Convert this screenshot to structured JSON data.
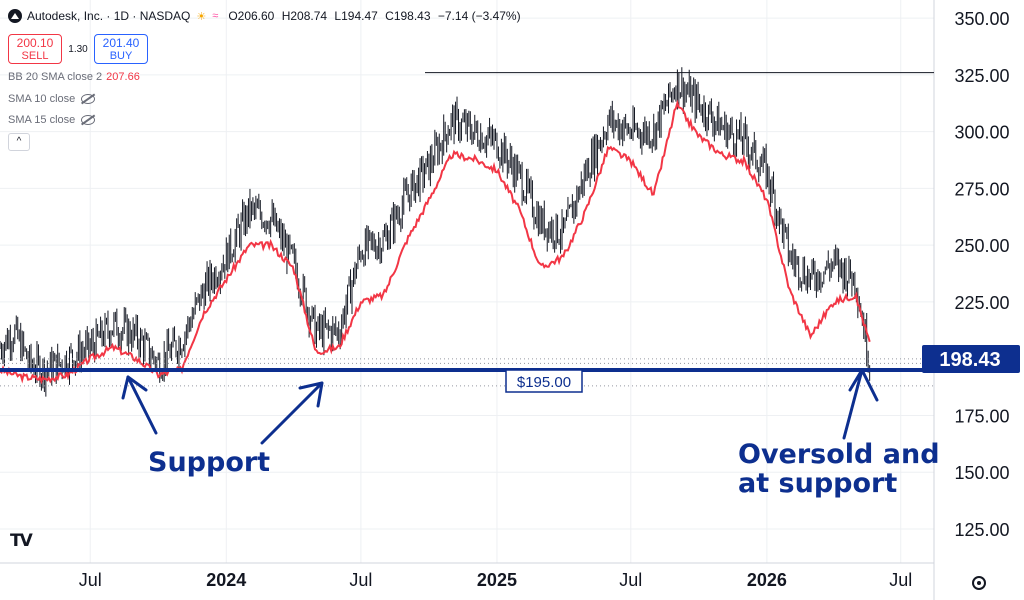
{
  "header": {
    "title": "Autodesk, Inc. · 1D · NASDAQ",
    "open": "O206.60",
    "high": "H208.74",
    "low": "L194.47",
    "close": "C198.43",
    "change": "−7.14 (−3.47%)"
  },
  "trade": {
    "sell_price": "200.10",
    "sell_label": "SELL",
    "spread": "1.30",
    "buy_price": "201.40",
    "buy_label": "BUY"
  },
  "indicators": {
    "bb_label": "BB 20 SMA close 2",
    "bb_value": "207.66",
    "sma10_label": "SMA 10 close",
    "sma15_label": "SMA 15 close",
    "collapse_glyph": "^"
  },
  "annotations": {
    "support_label": "Support",
    "oversold_line1": "Oversold and",
    "oversold_line2": "at support",
    "level_label": "$195.00",
    "last_price_label": "198.43"
  },
  "branding": {
    "logo_text": "TV"
  },
  "colors": {
    "price_bars": "#131722",
    "sma_line": "#f23645",
    "annotation_blue": "#0d2f8f",
    "grid": "#eef0f3"
  },
  "chart_data": {
    "type": "line",
    "symbol": "Autodesk, Inc.",
    "interval": "1D",
    "exchange": "NASDAQ",
    "y_axis_ticks": [
      "350.00",
      "325.00",
      "300.00",
      "275.00",
      "250.00",
      "225.00",
      "175.00",
      "150.00",
      "125.00"
    ],
    "y_axis_values": [
      350,
      325,
      300,
      275,
      250,
      225,
      175,
      150,
      125
    ],
    "x_axis_ticks": [
      "Jul",
      "2024",
      "Jul",
      "2025",
      "Jul",
      "2026",
      "Jul"
    ],
    "x_axis_dates": [
      "2023-07-01",
      "2024-01-01",
      "2024-07-01",
      "2025-01-01",
      "2025-07-01",
      "2026-01-01",
      "2026-07-01"
    ],
    "x_range": [
      "2023-03-01",
      "2026-08-15"
    ],
    "ylim": [
      110,
      358
    ],
    "last_price": 198.43,
    "support_level": 195.0,
    "resistance_level": 326.0,
    "series": [
      {
        "name": "Autodesk, Inc.",
        "kind": "price",
        "points": [
          [
            "2023-03-01",
            205
          ],
          [
            "2023-03-20",
            212
          ],
          [
            "2023-04-10",
            198
          ],
          [
            "2023-05-01",
            195
          ],
          [
            "2023-06-01",
            200
          ],
          [
            "2023-07-01",
            205
          ],
          [
            "2023-08-01",
            215
          ],
          [
            "2023-09-01",
            210
          ],
          [
            "2023-10-01",
            198
          ],
          [
            "2023-11-01",
            208
          ],
          [
            "2023-12-01",
            230
          ],
          [
            "2024-01-01",
            245
          ],
          [
            "2024-02-01",
            265
          ],
          [
            "2024-03-01",
            262
          ],
          [
            "2024-04-01",
            242
          ],
          [
            "2024-05-01",
            212
          ],
          [
            "2024-06-01",
            212
          ],
          [
            "2024-07-01",
            248
          ],
          [
            "2024-08-01",
            252
          ],
          [
            "2024-09-01",
            272
          ],
          [
            "2024-10-01",
            285
          ],
          [
            "2024-11-01",
            305
          ],
          [
            "2024-12-01",
            300
          ],
          [
            "2025-01-01",
            295
          ],
          [
            "2025-02-01",
            280
          ],
          [
            "2025-03-01",
            260
          ],
          [
            "2025-04-01",
            255
          ],
          [
            "2025-05-01",
            282
          ],
          [
            "2025-06-01",
            305
          ],
          [
            "2025-07-01",
            300
          ],
          [
            "2025-08-01",
            300
          ],
          [
            "2025-09-01",
            322
          ],
          [
            "2025-10-01",
            312
          ],
          [
            "2025-11-01",
            302
          ],
          [
            "2025-12-01",
            296
          ],
          [
            "2026-01-01",
            282
          ],
          [
            "2026-02-01",
            245
          ],
          [
            "2026-03-01",
            235
          ],
          [
            "2026-04-01",
            242
          ],
          [
            "2026-05-01",
            235
          ],
          [
            "2026-05-20",
            198.43
          ]
        ]
      },
      {
        "name": "SMA 10 close",
        "kind": "sma",
        "points": [
          [
            "2023-03-01",
            195
          ],
          [
            "2023-04-01",
            192
          ],
          [
            "2023-05-01",
            191
          ],
          [
            "2023-06-01",
            193
          ],
          [
            "2023-07-01",
            200
          ],
          [
            "2023-08-01",
            205
          ],
          [
            "2023-09-01",
            200
          ],
          [
            "2023-10-01",
            193
          ],
          [
            "2023-11-01",
            195
          ],
          [
            "2023-12-01",
            220
          ],
          [
            "2024-01-01",
            235
          ],
          [
            "2024-02-01",
            250
          ],
          [
            "2024-03-01",
            250
          ],
          [
            "2024-04-01",
            240
          ],
          [
            "2024-05-01",
            203
          ],
          [
            "2024-06-01",
            205
          ],
          [
            "2024-07-01",
            225
          ],
          [
            "2024-08-01",
            228
          ],
          [
            "2024-09-01",
            252
          ],
          [
            "2024-10-01",
            270
          ],
          [
            "2024-11-01",
            290
          ],
          [
            "2024-12-01",
            288
          ],
          [
            "2025-01-01",
            283
          ],
          [
            "2025-02-01",
            265
          ],
          [
            "2025-03-01",
            240
          ],
          [
            "2025-04-01",
            245
          ],
          [
            "2025-05-01",
            265
          ],
          [
            "2025-06-01",
            293
          ],
          [
            "2025-07-01",
            287
          ],
          [
            "2025-08-01",
            272
          ],
          [
            "2025-09-01",
            312
          ],
          [
            "2025-10-01",
            298
          ],
          [
            "2025-11-01",
            290
          ],
          [
            "2025-12-01",
            287
          ],
          [
            "2026-01-01",
            270
          ],
          [
            "2026-02-01",
            230
          ],
          [
            "2026-03-01",
            210
          ],
          [
            "2026-04-01",
            225
          ],
          [
            "2026-05-01",
            228
          ],
          [
            "2026-05-20",
            207
          ]
        ]
      }
    ]
  }
}
